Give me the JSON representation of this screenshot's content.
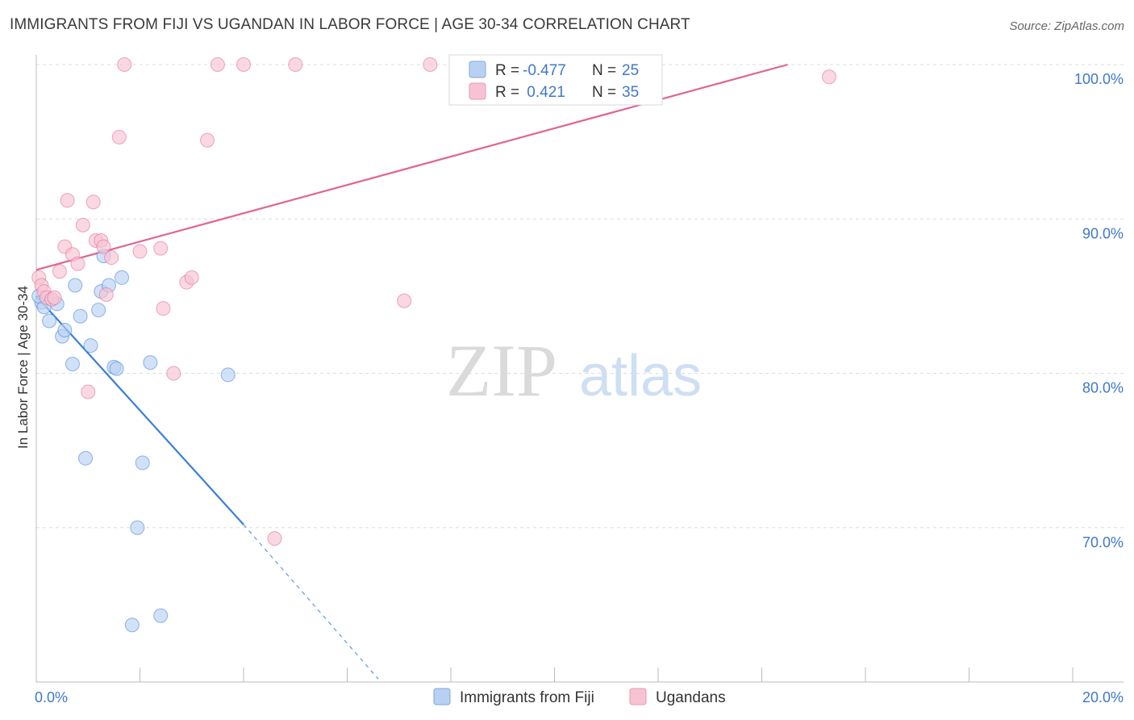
{
  "title": "IMMIGRANTS FROM FIJI VS UGANDAN IN LABOR FORCE | AGE 30-34 CORRELATION CHART",
  "source": "Source: ZipAtlas.com",
  "watermark": {
    "zip": "ZIP",
    "atlas": "atlas"
  },
  "legend": {
    "rows": [
      {
        "r_label": "R =",
        "r_value": "-0.477",
        "n_label": "N =",
        "n_value": "25"
      },
      {
        "r_label": "R =",
        "r_value": " 0.421",
        "n_label": "N =",
        "n_value": "35"
      }
    ]
  },
  "colors": {
    "blue": "#3a7fd9",
    "blue_fill": "#b8d1f3",
    "pink": "#e06592",
    "pink_fill": "#f7c3d3",
    "tick_text": "#3f78c9",
    "grid": "#dedede"
  },
  "chart_data": {
    "type": "scatter",
    "title": "IMMIGRANTS FROM FIJI VS UGANDAN IN LABOR FORCE | AGE 30-34 CORRELATION CHART",
    "xlabel": "",
    "ylabel": "In Labor Force | Age 30-34",
    "xlim": [
      0,
      20
    ],
    "ylim": [
      60,
      101
    ],
    "x_tick_labels": [
      "0.0%",
      "20.0%"
    ],
    "y_ticks": [
      70,
      80,
      90,
      100
    ],
    "y_tick_labels": [
      "70.0%",
      "80.0%",
      "90.0%",
      "100.0%"
    ],
    "series": [
      {
        "name": "Immigrants from Fiji",
        "color": "blue",
        "r": -0.477,
        "n": 25,
        "points": [
          [
            0.1,
            84.6
          ],
          [
            0.15,
            84.3
          ],
          [
            0.25,
            83.4
          ],
          [
            0.4,
            84.5
          ],
          [
            0.5,
            82.4
          ],
          [
            0.55,
            82.8
          ],
          [
            0.7,
            80.6
          ],
          [
            0.75,
            85.7
          ],
          [
            0.85,
            83.7
          ],
          [
            0.95,
            74.5
          ],
          [
            1.05,
            81.8
          ],
          [
            1.2,
            84.1
          ],
          [
            1.25,
            85.3
          ],
          [
            1.3,
            87.6
          ],
          [
            1.4,
            85.7
          ],
          [
            1.5,
            80.4
          ],
          [
            1.55,
            80.3
          ],
          [
            1.65,
            86.2
          ],
          [
            1.85,
            63.7
          ],
          [
            1.95,
            70.0
          ],
          [
            2.05,
            74.2
          ],
          [
            2.2,
            80.7
          ],
          [
            2.4,
            64.3
          ],
          [
            3.7,
            79.9
          ],
          [
            0.05,
            85.0
          ]
        ],
        "trend": {
          "x0": 0.0,
          "y0": 85.0,
          "x1": 4.0,
          "y1": 70.2,
          "dash_x1": 6.6,
          "dash_y1": 60.2
        }
      },
      {
        "name": "Ugandans",
        "color": "pink",
        "r": 0.421,
        "n": 35,
        "points": [
          [
            0.05,
            86.2
          ],
          [
            0.1,
            85.7
          ],
          [
            0.15,
            85.3
          ],
          [
            0.2,
            84.9
          ],
          [
            0.3,
            84.8
          ],
          [
            0.35,
            84.9
          ],
          [
            0.45,
            86.6
          ],
          [
            0.55,
            88.2
          ],
          [
            0.6,
            91.2
          ],
          [
            0.7,
            87.7
          ],
          [
            0.8,
            87.1
          ],
          [
            0.9,
            89.6
          ],
          [
            1.0,
            78.8
          ],
          [
            1.1,
            91.1
          ],
          [
            1.15,
            88.6
          ],
          [
            1.25,
            88.6
          ],
          [
            1.3,
            88.2
          ],
          [
            1.35,
            85.1
          ],
          [
            1.45,
            87.5
          ],
          [
            1.6,
            95.3
          ],
          [
            1.7,
            100.0
          ],
          [
            2.0,
            87.9
          ],
          [
            2.4,
            88.1
          ],
          [
            2.45,
            84.2
          ],
          [
            2.65,
            80.0
          ],
          [
            2.9,
            85.9
          ],
          [
            3.0,
            86.2
          ],
          [
            3.3,
            95.1
          ],
          [
            3.5,
            100.0
          ],
          [
            4.0,
            100.0
          ],
          [
            4.6,
            69.3
          ],
          [
            5.0,
            100.0
          ],
          [
            7.1,
            84.7
          ],
          [
            7.6,
            100.0
          ],
          [
            15.3,
            99.2
          ]
        ],
        "trend": {
          "x0": 0.0,
          "y0": 86.7,
          "x1": 14.5,
          "y1": 100.0
        }
      }
    ]
  },
  "bottom_legend": [
    {
      "label": "Immigrants from Fiji",
      "color": "blue"
    },
    {
      "label": "Ugandans",
      "color": "pink"
    }
  ]
}
